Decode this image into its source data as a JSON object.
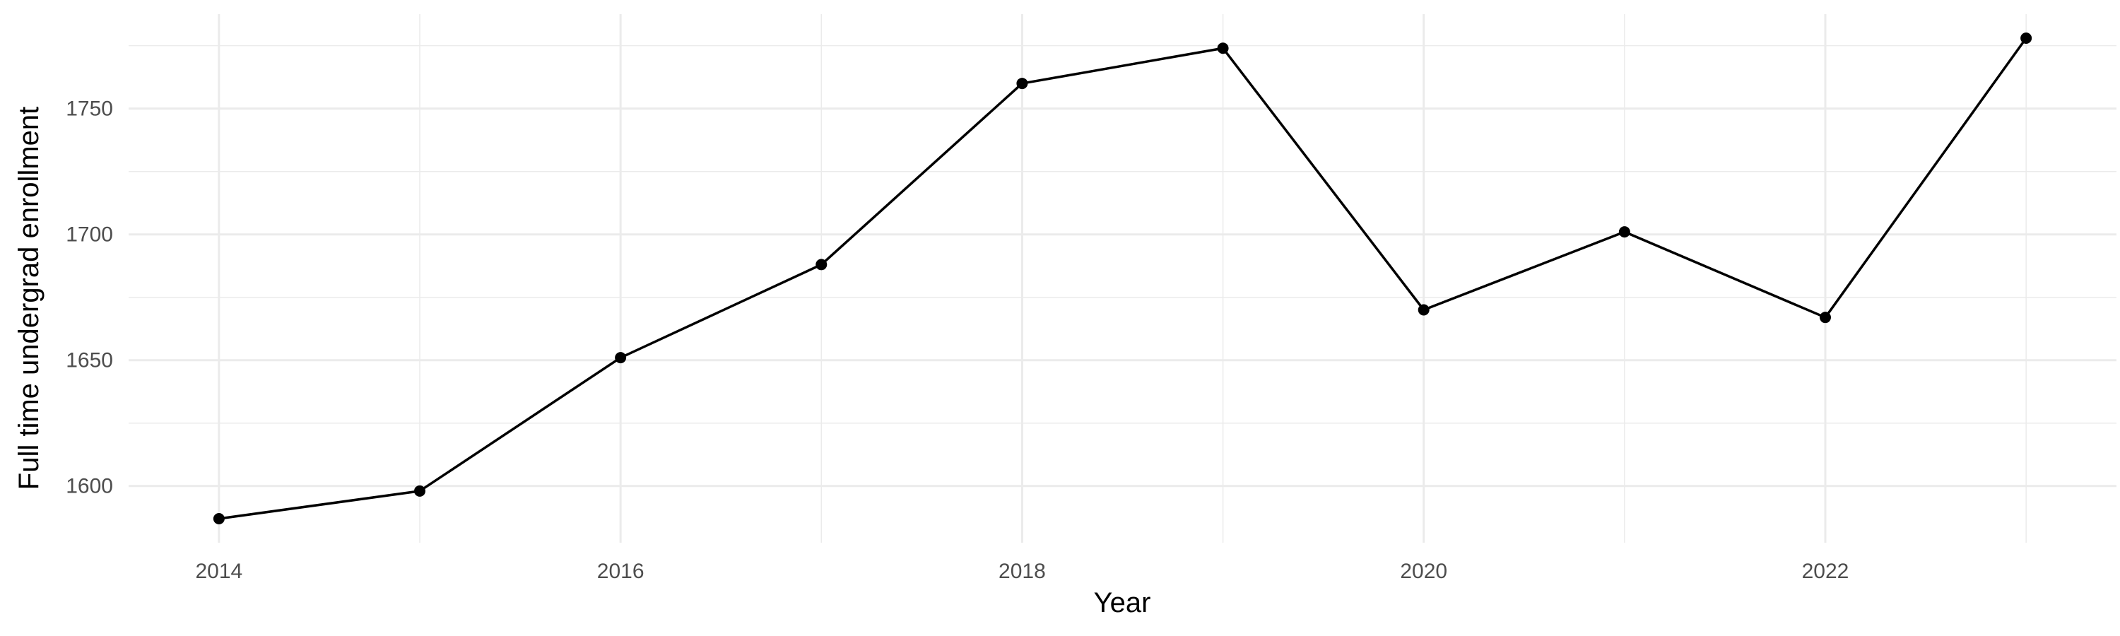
{
  "chart_data": {
    "type": "line",
    "title": "",
    "xlabel": "Year",
    "ylabel": "Full time undergrad enrollment",
    "x": [
      2014,
      2015,
      2016,
      2017,
      2018,
      2019,
      2020,
      2021,
      2022,
      2023
    ],
    "series": [
      {
        "values": [
          1587,
          1598,
          1651,
          1688,
          1760,
          1774,
          1670,
          1701,
          1667,
          1778
        ]
      }
    ],
    "x_ticks": [
      2014,
      2016,
      2018,
      2020,
      2022
    ],
    "x_tick_labels": [
      "2014",
      "2016",
      "2018",
      "2020",
      "2022"
    ],
    "y_ticks": [
      1600,
      1650,
      1700,
      1750
    ],
    "y_tick_labels": [
      "1600",
      "1650",
      "1700",
      "1750"
    ],
    "xlim": [
      2013.55,
      2023.45
    ],
    "ylim": [
      1577.45,
      1787.55
    ],
    "grid": true,
    "legend": "none",
    "colors": {
      "line": "#000000",
      "grid": "#ebebeb",
      "tick_text": "#4d4d4d",
      "background": "#ffffff"
    }
  }
}
